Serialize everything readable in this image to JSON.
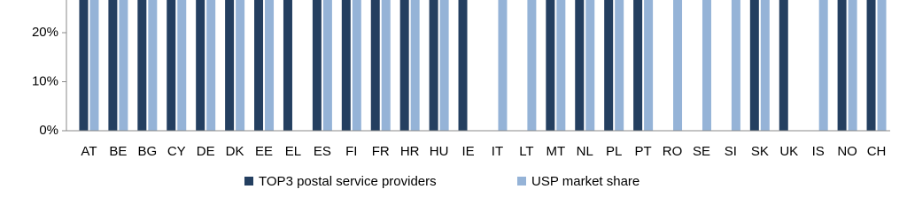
{
  "chart_data": {
    "type": "bar",
    "categories": [
      "AT",
      "BE",
      "BG",
      "CY",
      "DE",
      "DK",
      "EE",
      "EL",
      "ES",
      "FI",
      "FR",
      "HR",
      "HU",
      "IE",
      "IT",
      "LT",
      "MT",
      "NL",
      "PL",
      "PT",
      "RO",
      "SE",
      "SI",
      "SK",
      "UK",
      "IS",
      "NO",
      "CH"
    ],
    "series": [
      {
        "name": "TOP3 postal service providers",
        "color": "#243f60",
        "values": [
          30,
          30,
          30,
          30,
          30,
          30,
          30,
          30,
          30,
          30,
          30,
          30,
          30,
          30,
          null,
          null,
          30,
          30,
          30,
          30,
          null,
          null,
          null,
          30,
          30,
          null,
          30,
          30
        ]
      },
      {
        "name": "USP market share",
        "color": "#95b3d7",
        "values": [
          30,
          30,
          30,
          30,
          30,
          30,
          30,
          null,
          30,
          30,
          30,
          30,
          30,
          null,
          30,
          30,
          30,
          30,
          30,
          30,
          30,
          30,
          30,
          30,
          null,
          30,
          30,
          30
        ]
      }
    ],
    "ylim": [
      0,
      26.7
    ],
    "yticks": [
      {
        "value": 0,
        "label": "0%"
      },
      {
        "value": 10,
        "label": "10%"
      },
      {
        "value": 20,
        "label": "20%"
      }
    ]
  }
}
